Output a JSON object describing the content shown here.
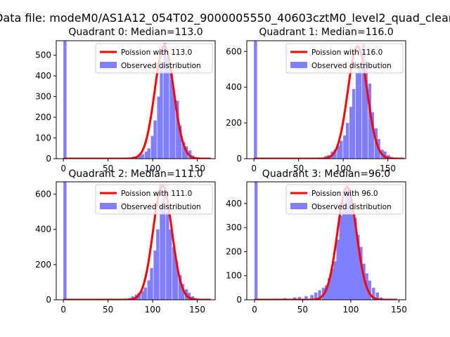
{
  "figure": {
    "suptitle": "Data file: modeM0/AS1A12_054T02_9000005550_40603cztM0_level2_quad_clean"
  },
  "colors": {
    "hist_fill": "#7f7fff",
    "poisson_line": "#ff0000",
    "axis": "#000000"
  },
  "chart_data": [
    {
      "type": "bar",
      "title": "Quadrant 0: Median=113.0",
      "xlim": [
        -8,
        170
      ],
      "ylim": [
        0,
        570
      ],
      "xticks": [
        0,
        50,
        100,
        150
      ],
      "yticks": [
        0,
        100,
        200,
        300,
        400,
        500
      ],
      "legend": {
        "placement": "top-right",
        "entries": [
          "Poission with 113.0",
          "Observed distribution"
        ]
      },
      "poisson_mean": 113.0,
      "poisson_amplitude": 545,
      "poisson_xrange": [
        0,
        165
      ],
      "bin_width": 3.5,
      "bins": [
        [
          0,
          570
        ],
        [
          66,
          2
        ],
        [
          70,
          4
        ],
        [
          73,
          5
        ],
        [
          77,
          10
        ],
        [
          80,
          10
        ],
        [
          84,
          15
        ],
        [
          87,
          22
        ],
        [
          91,
          35
        ],
        [
          94,
          50
        ],
        [
          98,
          110
        ],
        [
          101,
          185
        ],
        [
          105,
          300
        ],
        [
          108,
          445
        ],
        [
          112,
          560
        ],
        [
          115,
          490
        ],
        [
          119,
          430
        ],
        [
          122,
          325
        ],
        [
          126,
          280
        ],
        [
          129,
          160
        ],
        [
          133,
          80
        ],
        [
          136,
          60
        ],
        [
          140,
          40
        ],
        [
          143,
          15
        ],
        [
          147,
          5
        ],
        [
          150,
          2
        ]
      ]
    },
    {
      "type": "bar",
      "title": "Quadrant 1: Median=116.0",
      "xlim": [
        -8,
        170
      ],
      "ylim": [
        0,
        660
      ],
      "xticks": [
        0,
        50,
        100,
        150
      ],
      "yticks": [
        0,
        200,
        400,
        600
      ],
      "legend": {
        "placement": "top-right",
        "entries": [
          "Poission with 116.0",
          "Observed distribution"
        ]
      },
      "poisson_mean": 116.0,
      "poisson_amplitude": 630,
      "poisson_xrange": [
        0,
        168
      ],
      "bin_width": 3.5,
      "bins": [
        [
          0,
          660
        ],
        [
          75,
          5
        ],
        [
          79,
          15
        ],
        [
          82,
          20
        ],
        [
          86,
          40
        ],
        [
          89,
          50
        ],
        [
          93,
          70
        ],
        [
          96,
          100
        ],
        [
          100,
          130
        ],
        [
          103,
          200
        ],
        [
          107,
          290
        ],
        [
          110,
          390
        ],
        [
          114,
          480
        ],
        [
          117,
          510
        ],
        [
          121,
          640
        ],
        [
          124,
          550
        ],
        [
          128,
          420
        ],
        [
          131,
          260
        ],
        [
          135,
          170
        ],
        [
          138,
          110
        ],
        [
          142,
          50
        ],
        [
          145,
          40
        ],
        [
          149,
          20
        ],
        [
          152,
          10
        ],
        [
          156,
          5
        ]
      ]
    },
    {
      "type": "bar",
      "title": "Quadrant 2: Median=111.0",
      "xlim": [
        -8,
        170
      ],
      "ylim": [
        0,
        670
      ],
      "xticks": [
        0,
        50,
        100,
        150
      ],
      "yticks": [
        0,
        200,
        400,
        600
      ],
      "legend": {
        "placement": "top-right",
        "entries": [
          "Poission with 111.0",
          "Observed distribution"
        ]
      },
      "poisson_mean": 111.0,
      "poisson_amplitude": 650,
      "poisson_xrange": [
        0,
        165
      ],
      "bin_width": 3.5,
      "bins": [
        [
          0,
          670
        ],
        [
          69,
          5
        ],
        [
          73,
          10
        ],
        [
          76,
          20
        ],
        [
          80,
          30
        ],
        [
          83,
          40
        ],
        [
          87,
          50
        ],
        [
          90,
          70
        ],
        [
          94,
          110
        ],
        [
          97,
          180
        ],
        [
          101,
          280
        ],
        [
          104,
          400
        ],
        [
          108,
          540
        ],
        [
          111,
          620
        ],
        [
          115,
          500
        ],
        [
          118,
          400
        ],
        [
          122,
          300
        ],
        [
          125,
          220
        ],
        [
          129,
          140
        ],
        [
          132,
          90
        ],
        [
          136,
          60
        ],
        [
          139,
          40
        ],
        [
          143,
          20
        ],
        [
          146,
          10
        ],
        [
          150,
          5
        ]
      ]
    },
    {
      "type": "bar",
      "title": "Quadrant 3: Median=96.0",
      "xlim": [
        -8,
        157
      ],
      "ylim": [
        0,
        490
      ],
      "xticks": [
        0,
        50,
        100,
        150
      ],
      "yticks": [
        0,
        100,
        200,
        300,
        400
      ],
      "legend": {
        "placement": "top-right",
        "entries": [
          "Poission with 96.0",
          "Observed distribution"
        ]
      },
      "poisson_mean": 96.0,
      "poisson_amplitude": 470,
      "poisson_xrange": [
        0,
        148
      ],
      "bin_width": 3.2,
      "bins": [
        [
          0,
          490
        ],
        [
          10,
          3
        ],
        [
          20,
          5
        ],
        [
          30,
          7
        ],
        [
          40,
          10
        ],
        [
          45,
          12
        ],
        [
          52,
          15
        ],
        [
          58,
          20
        ],
        [
          62,
          30
        ],
        [
          66,
          40
        ],
        [
          70,
          50
        ],
        [
          73,
          60
        ],
        [
          76,
          90
        ],
        [
          79,
          130
        ],
        [
          82,
          160
        ],
        [
          85,
          250
        ],
        [
          88,
          350
        ],
        [
          91,
          400
        ],
        [
          94,
          470
        ],
        [
          97,
          460
        ],
        [
          100,
          380
        ],
        [
          103,
          340
        ],
        [
          106,
          270
        ],
        [
          109,
          220
        ],
        [
          112,
          150
        ],
        [
          115,
          110
        ],
        [
          118,
          80
        ],
        [
          122,
          50
        ],
        [
          126,
          30
        ],
        [
          130,
          10
        ]
      ]
    }
  ]
}
